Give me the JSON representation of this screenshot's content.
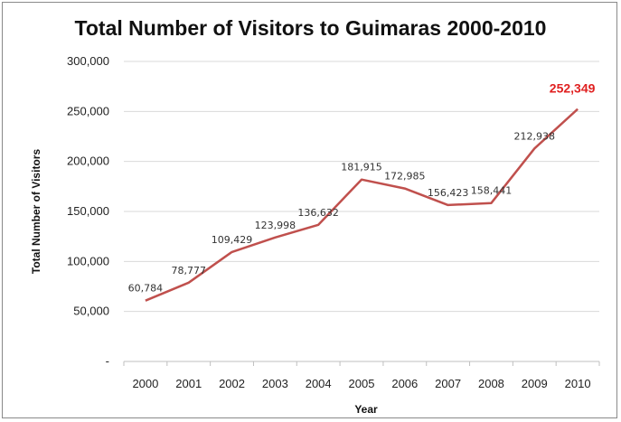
{
  "chart_data": {
    "type": "line",
    "title": "Total Number of Visitors to Guimaras 2000-2010",
    "xlabel": "Year",
    "ylabel": "Total Number of Visitors",
    "categories": [
      "2000",
      "2001",
      "2002",
      "2003",
      "2004",
      "2005",
      "2006",
      "2007",
      "2008",
      "2009",
      "2010"
    ],
    "series": [
      {
        "values": [
          60784,
          78777,
          109429,
          123998,
          136632,
          181915,
          172985,
          156423,
          158441,
          212938,
          252349
        ]
      }
    ],
    "data_labels": [
      "60,784",
      "78,777",
      "109,429",
      "123,998",
      "136,632",
      "181,915",
      "172,985",
      "156,423",
      "158,441",
      "212,938",
      "252,349"
    ],
    "y_tick_labels": [
      "-",
      "50,000",
      "100,000",
      "150,000",
      "200,000",
      "250,000",
      "300,000"
    ],
    "ylim": [
      0,
      300000
    ],
    "grid": true,
    "line_color": "#c0504d",
    "highlight_color": "#e02020",
    "gridline_color": "#d9d9d9"
  }
}
